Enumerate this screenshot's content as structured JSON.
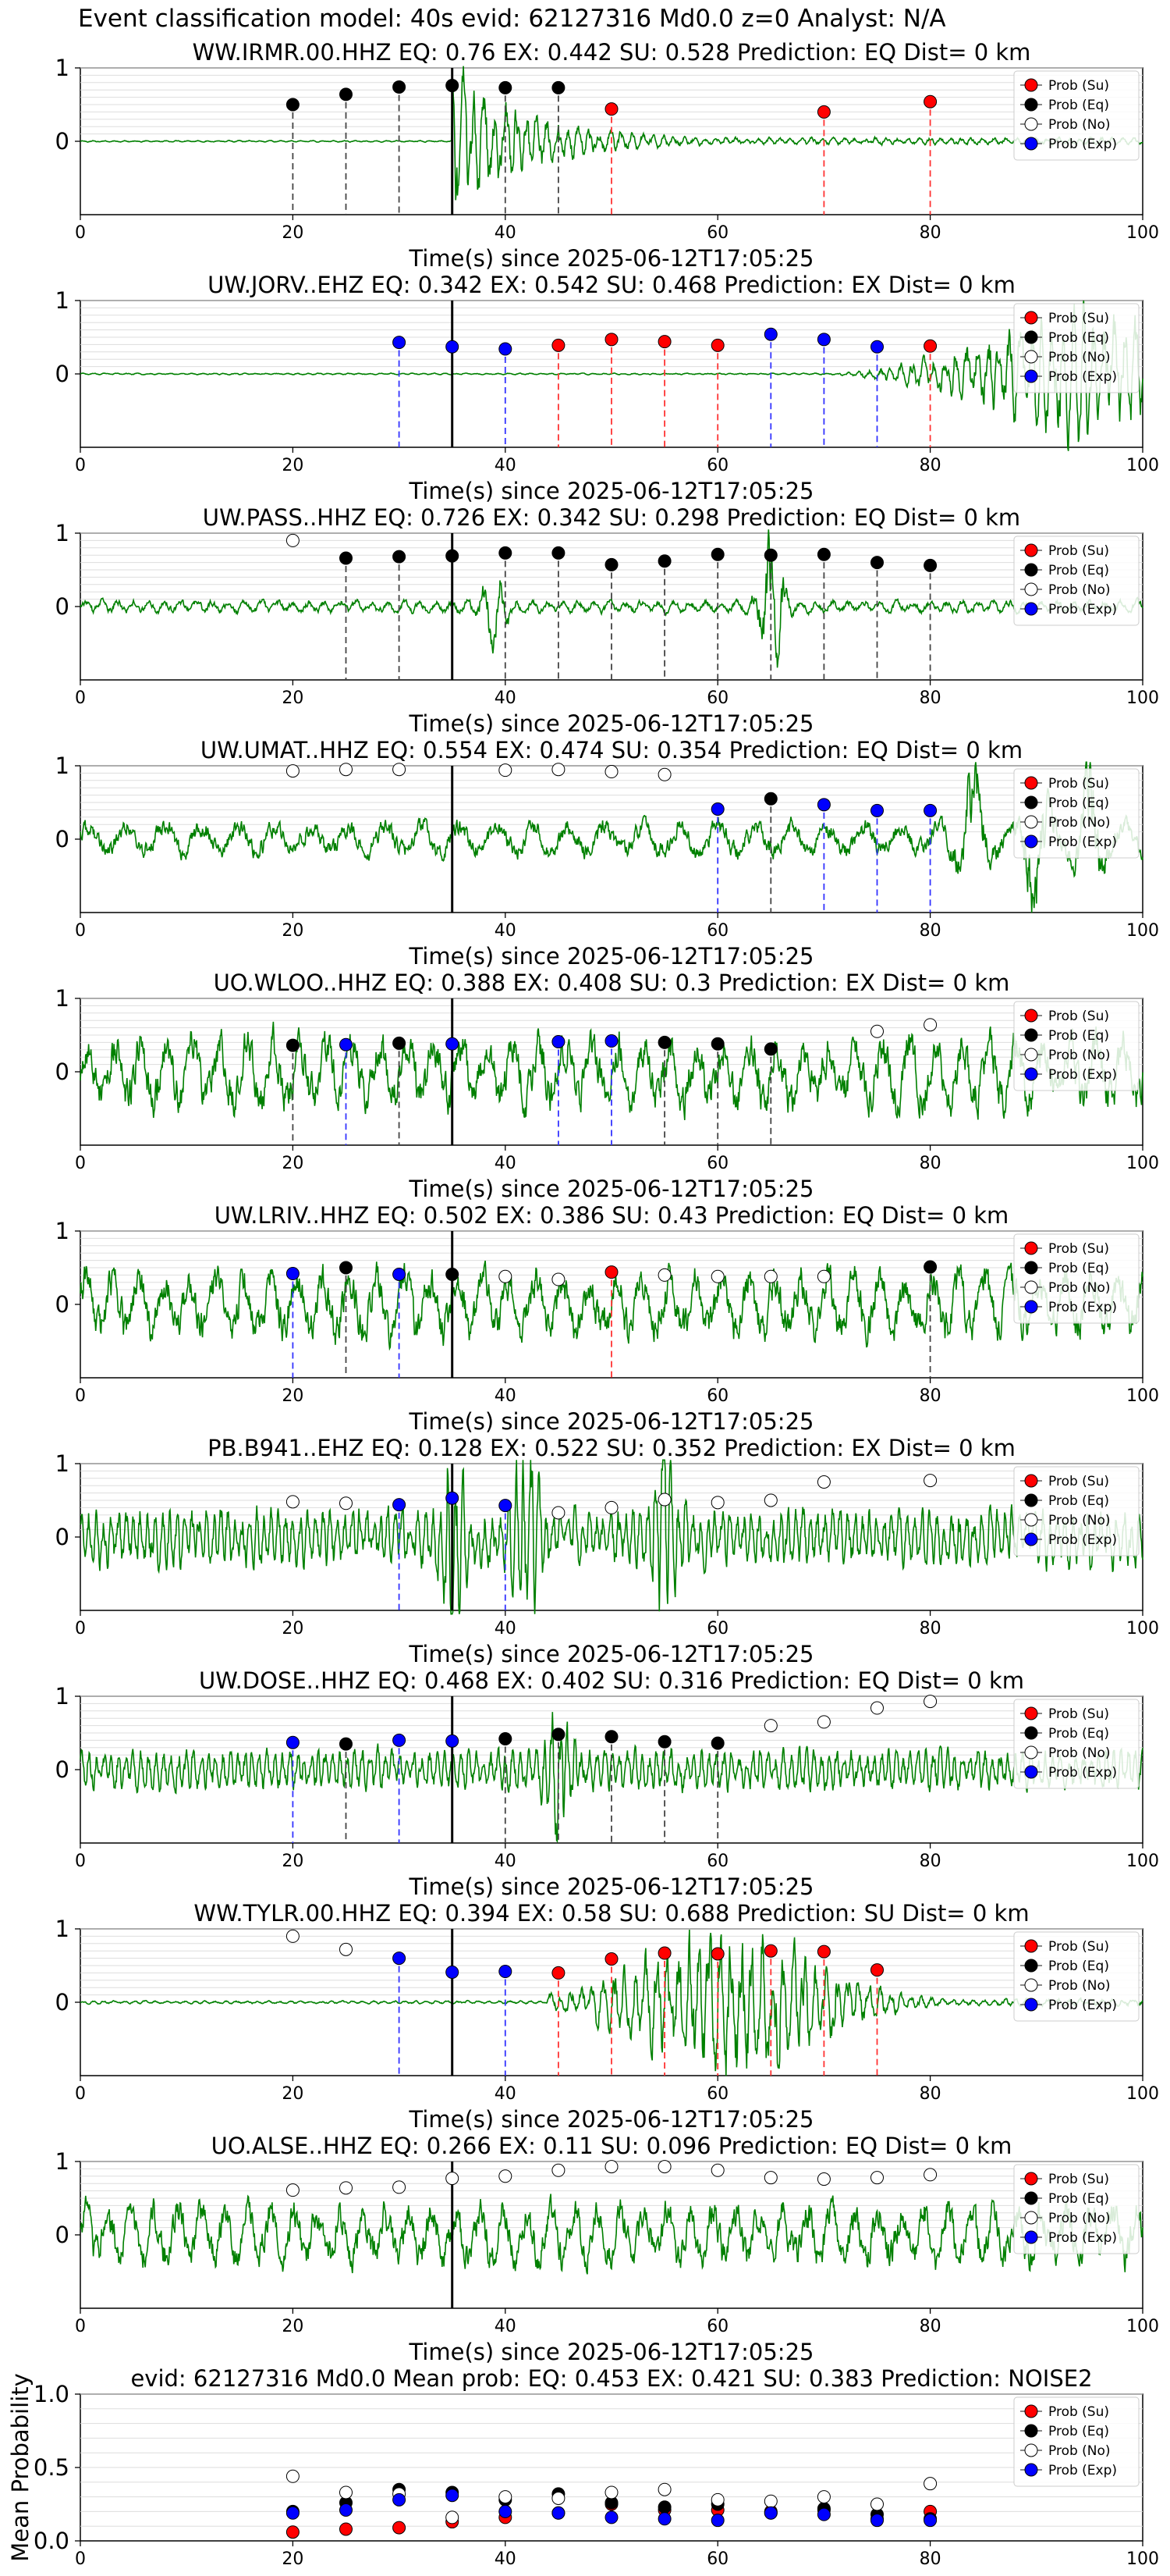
{
  "figure_title": "Event classification model: 40s evid: 62127316 Md0.0 z=0 Analyst: N/A",
  "legend_labels": [
    "Prob (Su)",
    "Prob (Eq)",
    "Prob (No)",
    "Prob (Exp)"
  ],
  "colors": {
    "su": "#ff0000",
    "eq": "#000000",
    "no": "#ffffff",
    "exp": "#0000ff",
    "trace": "#008000",
    "p_line": "#000000"
  },
  "chart_data": [
    {
      "type": "line",
      "title": "WW.IRMR.00.HHZ   EQ: 0.76  EX: 0.442  SU: 0.528   Prediction: EQ    Dist= 0 km",
      "xlabel": "Time(s) since 2025-06-12T17:05:25",
      "ylabel": "",
      "xlim": [
        0,
        100
      ],
      "ylim": [
        -1,
        1
      ],
      "xticks": [
        0,
        20,
        40,
        60,
        80,
        100
      ],
      "yticks": [
        0,
        1
      ],
      "p_arrival": 35,
      "legend": "top-right",
      "waveform": {
        "style": "event",
        "start": 35,
        "peak": 1,
        "decay": 0.13,
        "tail": 0.04,
        "noise": 0.01,
        "period": 1,
        "seed": 11
      },
      "points": [
        {
          "t": 20,
          "cls": "eq",
          "p": 0.5
        },
        {
          "t": 25,
          "cls": "eq",
          "p": 0.64
        },
        {
          "t": 30,
          "cls": "eq",
          "p": 0.74
        },
        {
          "t": 35,
          "cls": "eq",
          "p": 0.76
        },
        {
          "t": 40,
          "cls": "eq",
          "p": 0.73
        },
        {
          "t": 45,
          "cls": "eq",
          "p": 0.73
        },
        {
          "t": 50,
          "cls": "su",
          "p": 0.44
        },
        {
          "t": 70,
          "cls": "su",
          "p": 0.4
        },
        {
          "t": 80,
          "cls": "su",
          "p": 0.54
        }
      ]
    },
    {
      "type": "line",
      "title": "UW.JORV..EHZ   EQ: 0.342  EX: 0.542  SU: 0.468   Prediction: EX    Dist= 0 km",
      "xlabel": "Time(s) since 2025-06-12T17:05:25",
      "ylabel": "",
      "xlim": [
        0,
        100
      ],
      "ylim": [
        -1,
        1
      ],
      "xticks": [
        0,
        20,
        40,
        60,
        80,
        100
      ],
      "yticks": [
        0,
        1
      ],
      "p_arrival": 35,
      "legend": "top-right",
      "waveform": {
        "style": "ramp",
        "start": 70,
        "peak": 1,
        "noise": 0.01,
        "period": 1,
        "seed": 23
      },
      "points": [
        {
          "t": 30,
          "cls": "exp",
          "p": 0.43
        },
        {
          "t": 35,
          "cls": "exp",
          "p": 0.37
        },
        {
          "t": 40,
          "cls": "exp",
          "p": 0.34
        },
        {
          "t": 45,
          "cls": "su",
          "p": 0.39
        },
        {
          "t": 50,
          "cls": "su",
          "p": 0.47
        },
        {
          "t": 55,
          "cls": "su",
          "p": 0.44
        },
        {
          "t": 60,
          "cls": "su",
          "p": 0.39
        },
        {
          "t": 65,
          "cls": "exp",
          "p": 0.54
        },
        {
          "t": 70,
          "cls": "exp",
          "p": 0.47
        },
        {
          "t": 75,
          "cls": "exp",
          "p": 0.37
        },
        {
          "t": 80,
          "cls": "su",
          "p": 0.38
        }
      ]
    },
    {
      "type": "line",
      "title": "UW.PASS..HHZ   EQ: 0.726  EX: 0.342  SU: 0.298   Prediction: EQ    Dist= 0 km",
      "xlabel": "Time(s) since 2025-06-12T17:05:25",
      "ylabel": "",
      "xlim": [
        0,
        100
      ],
      "ylim": [
        -1,
        1
      ],
      "xticks": [
        0,
        20,
        40,
        60,
        80,
        100
      ],
      "yticks": [
        0,
        1
      ],
      "p_arrival": 35,
      "legend": "top-right",
      "waveform": {
        "style": "noise",
        "noise": 0.09,
        "period": 1.5,
        "seed": 37,
        "bursts": [
          [
            39,
            0.5
          ],
          [
            65,
            0.9
          ]
        ]
      },
      "points": [
        {
          "t": 20,
          "cls": "no",
          "p": 0.9
        },
        {
          "t": 25,
          "cls": "eq",
          "p": 0.66
        },
        {
          "t": 30,
          "cls": "eq",
          "p": 0.68
        },
        {
          "t": 35,
          "cls": "eq",
          "p": 0.69
        },
        {
          "t": 40,
          "cls": "eq",
          "p": 0.73
        },
        {
          "t": 45,
          "cls": "eq",
          "p": 0.73
        },
        {
          "t": 50,
          "cls": "eq",
          "p": 0.57
        },
        {
          "t": 55,
          "cls": "eq",
          "p": 0.62
        },
        {
          "t": 60,
          "cls": "eq",
          "p": 0.71
        },
        {
          "t": 65,
          "cls": "eq",
          "p": 0.7
        },
        {
          "t": 70,
          "cls": "eq",
          "p": 0.71
        },
        {
          "t": 75,
          "cls": "eq",
          "p": 0.6
        },
        {
          "t": 80,
          "cls": "eq",
          "p": 0.56
        }
      ]
    },
    {
      "type": "line",
      "title": "UW.UMAT..HHZ   EQ: 0.554  EX: 0.474  SU: 0.354   Prediction: EQ    Dist= 0 km",
      "xlabel": "Time(s) since 2025-06-12T17:05:25",
      "ylabel": "",
      "xlim": [
        0,
        100
      ],
      "ylim": [
        -1,
        1
      ],
      "xticks": [
        0,
        20,
        40,
        60,
        80,
        100
      ],
      "yticks": [
        0,
        1
      ],
      "p_arrival": 35,
      "legend": "top-right",
      "waveform": {
        "style": "noise",
        "noise": 0.25,
        "period": 3.5,
        "seed": 41,
        "bursts": [
          [
            84,
            0.9
          ],
          [
            90,
            0.9
          ],
          [
            95,
            0.8
          ]
        ]
      },
      "points": [
        {
          "t": 20,
          "cls": "no",
          "p": 0.93
        },
        {
          "t": 25,
          "cls": "no",
          "p": 0.95
        },
        {
          "t": 30,
          "cls": "no",
          "p": 0.95
        },
        {
          "t": 40,
          "cls": "no",
          "p": 0.94
        },
        {
          "t": 45,
          "cls": "no",
          "p": 0.95
        },
        {
          "t": 50,
          "cls": "no",
          "p": 0.92
        },
        {
          "t": 55,
          "cls": "no",
          "p": 0.88
        },
        {
          "t": 60,
          "cls": "exp",
          "p": 0.41
        },
        {
          "t": 65,
          "cls": "eq",
          "p": 0.55
        },
        {
          "t": 70,
          "cls": "exp",
          "p": 0.47
        },
        {
          "t": 75,
          "cls": "exp",
          "p": 0.39
        },
        {
          "t": 80,
          "cls": "exp",
          "p": 0.39
        }
      ]
    },
    {
      "type": "line",
      "title": "UO.WLOO..HHZ   EQ: 0.388  EX: 0.408  SU: 0.3   Prediction: EX    Dist= 0 km",
      "xlabel": "Time(s) since 2025-06-12T17:05:25",
      "ylabel": "",
      "xlim": [
        0,
        100
      ],
      "ylim": [
        -1,
        1
      ],
      "xticks": [
        0,
        20,
        40,
        60,
        80,
        100
      ],
      "yticks": [
        0,
        1
      ],
      "p_arrival": 35,
      "legend": "top-right",
      "waveform": {
        "style": "noise",
        "noise": 0.55,
        "period": 2.5,
        "seed": 53
      },
      "points": [
        {
          "t": 20,
          "cls": "eq",
          "p": 0.36
        },
        {
          "t": 25,
          "cls": "exp",
          "p": 0.37
        },
        {
          "t": 30,
          "cls": "eq",
          "p": 0.39
        },
        {
          "t": 35,
          "cls": "exp",
          "p": 0.38
        },
        {
          "t": 45,
          "cls": "exp",
          "p": 0.41
        },
        {
          "t": 50,
          "cls": "exp",
          "p": 0.42
        },
        {
          "t": 55,
          "cls": "eq",
          "p": 0.4
        },
        {
          "t": 60,
          "cls": "eq",
          "p": 0.38
        },
        {
          "t": 65,
          "cls": "eq",
          "p": 0.31
        },
        {
          "t": 75,
          "cls": "no",
          "p": 0.55
        },
        {
          "t": 80,
          "cls": "no",
          "p": 0.64
        }
      ]
    },
    {
      "type": "line",
      "title": "UW.LRIV..HHZ   EQ: 0.502  EX: 0.386  SU: 0.43   Prediction: EQ    Dist= 0 km",
      "xlabel": "Time(s) since 2025-06-12T17:05:25",
      "ylabel": "",
      "xlim": [
        0,
        100
      ],
      "ylim": [
        -1,
        1
      ],
      "xticks": [
        0,
        20,
        40,
        60,
        80,
        100
      ],
      "yticks": [
        0,
        1
      ],
      "p_arrival": 35,
      "legend": "top-right",
      "waveform": {
        "style": "noise",
        "noise": 0.5,
        "period": 2.5,
        "seed": 61
      },
      "points": [
        {
          "t": 20,
          "cls": "exp",
          "p": 0.42
        },
        {
          "t": 25,
          "cls": "eq",
          "p": 0.5
        },
        {
          "t": 30,
          "cls": "exp",
          "p": 0.41
        },
        {
          "t": 35,
          "cls": "eq",
          "p": 0.41
        },
        {
          "t": 40,
          "cls": "no",
          "p": 0.38
        },
        {
          "t": 45,
          "cls": "no",
          "p": 0.34
        },
        {
          "t": 50,
          "cls": "su",
          "p": 0.44
        },
        {
          "t": 55,
          "cls": "no",
          "p": 0.4
        },
        {
          "t": 60,
          "cls": "no",
          "p": 0.38
        },
        {
          "t": 65,
          "cls": "no",
          "p": 0.38
        },
        {
          "t": 70,
          "cls": "no",
          "p": 0.38
        },
        {
          "t": 80,
          "cls": "eq",
          "p": 0.51
        }
      ]
    },
    {
      "type": "line",
      "title": "PB.B941..EHZ   EQ: 0.128  EX: 0.522  SU: 0.352   Prediction: EX    Dist= 0 km",
      "xlabel": "Time(s) since 2025-06-12T17:05:25",
      "ylabel": "",
      "xlim": [
        0,
        100
      ],
      "ylim": [
        -1,
        1
      ],
      "xticks": [
        0,
        20,
        40,
        60,
        80,
        100
      ],
      "yticks": [
        0,
        1
      ],
      "p_arrival": 35,
      "legend": "top-right",
      "waveform": {
        "style": "noise",
        "noise": 0.4,
        "period": 0.7,
        "seed": 71,
        "bursts": [
          [
            35,
            0.9
          ],
          [
            42,
            0.9
          ],
          [
            55,
            0.9
          ]
        ]
      },
      "points": [
        {
          "t": 20,
          "cls": "no",
          "p": 0.48
        },
        {
          "t": 25,
          "cls": "no",
          "p": 0.46
        },
        {
          "t": 30,
          "cls": "exp",
          "p": 0.44
        },
        {
          "t": 35,
          "cls": "exp",
          "p": 0.53
        },
        {
          "t": 40,
          "cls": "exp",
          "p": 0.43
        },
        {
          "t": 45,
          "cls": "no",
          "p": 0.33
        },
        {
          "t": 50,
          "cls": "no",
          "p": 0.4
        },
        {
          "t": 55,
          "cls": "no",
          "p": 0.51
        },
        {
          "t": 60,
          "cls": "no",
          "p": 0.47
        },
        {
          "t": 65,
          "cls": "no",
          "p": 0.5
        },
        {
          "t": 70,
          "cls": "no",
          "p": 0.75
        },
        {
          "t": 80,
          "cls": "no",
          "p": 0.77
        }
      ]
    },
    {
      "type": "line",
      "title": "UW.DOSE..HHZ   EQ: 0.468  EX: 0.402  SU: 0.316   Prediction: EQ    Dist= 0 km",
      "xlabel": "Time(s) since 2025-06-12T17:05:25",
      "ylabel": "",
      "xlim": [
        0,
        100
      ],
      "ylim": [
        -1,
        1
      ],
      "xticks": [
        0,
        20,
        40,
        60,
        80,
        100
      ],
      "yticks": [
        0,
        1
      ],
      "p_arrival": 35,
      "legend": "top-right",
      "waveform": {
        "style": "noise",
        "noise": 0.28,
        "period": 0.7,
        "seed": 83,
        "bursts": [
          [
            45,
            0.9
          ]
        ]
      },
      "points": [
        {
          "t": 20,
          "cls": "exp",
          "p": 0.37
        },
        {
          "t": 25,
          "cls": "eq",
          "p": 0.35
        },
        {
          "t": 30,
          "cls": "exp",
          "p": 0.4
        },
        {
          "t": 35,
          "cls": "exp",
          "p": 0.39
        },
        {
          "t": 40,
          "cls": "eq",
          "p": 0.42
        },
        {
          "t": 45,
          "cls": "eq",
          "p": 0.48
        },
        {
          "t": 50,
          "cls": "eq",
          "p": 0.45
        },
        {
          "t": 55,
          "cls": "eq",
          "p": 0.38
        },
        {
          "t": 60,
          "cls": "eq",
          "p": 0.36
        },
        {
          "t": 65,
          "cls": "no",
          "p": 0.6
        },
        {
          "t": 70,
          "cls": "no",
          "p": 0.65
        },
        {
          "t": 75,
          "cls": "no",
          "p": 0.84
        },
        {
          "t": 80,
          "cls": "no",
          "p": 0.93
        }
      ]
    },
    {
      "type": "line",
      "title": "WW.TYLR.00.HHZ   EQ: 0.394  EX: 0.58  SU: 0.688   Prediction: SU    Dist= 0 km",
      "xlabel": "Time(s) since 2025-06-12T17:05:25",
      "ylabel": "",
      "xlim": [
        0,
        100
      ],
      "ylim": [
        -1,
        1
      ],
      "xticks": [
        0,
        20,
        40,
        60,
        80,
        100
      ],
      "yticks": [
        0,
        1
      ],
      "p_arrival": 35,
      "legend": "top-right",
      "waveform": {
        "style": "spindle",
        "start": 44,
        "center": 61,
        "width": 11,
        "peak": 1,
        "noise": 0.02,
        "period": 1,
        "seed": 97
      },
      "points": [
        {
          "t": 20,
          "cls": "no",
          "p": 0.9
        },
        {
          "t": 25,
          "cls": "no",
          "p": 0.72
        },
        {
          "t": 30,
          "cls": "exp",
          "p": 0.6
        },
        {
          "t": 35,
          "cls": "exp",
          "p": 0.41
        },
        {
          "t": 40,
          "cls": "exp",
          "p": 0.42
        },
        {
          "t": 45,
          "cls": "su",
          "p": 0.4
        },
        {
          "t": 50,
          "cls": "su",
          "p": 0.59
        },
        {
          "t": 55,
          "cls": "su",
          "p": 0.67
        },
        {
          "t": 60,
          "cls": "su",
          "p": 0.66
        },
        {
          "t": 65,
          "cls": "su",
          "p": 0.7
        },
        {
          "t": 70,
          "cls": "su",
          "p": 0.69
        },
        {
          "t": 75,
          "cls": "su",
          "p": 0.44
        }
      ]
    },
    {
      "type": "line",
      "title": "UO.ALSE..HHZ   EQ: 0.266  EX: 0.11  SU: 0.096   Prediction: EQ    Dist= 0 km",
      "xlabel": "Time(s) since 2025-06-12T17:05:25",
      "ylabel": "",
      "xlim": [
        0,
        100
      ],
      "ylim": [
        -1,
        1
      ],
      "xticks": [
        0,
        20,
        40,
        60,
        80,
        100
      ],
      "yticks": [
        0,
        1
      ],
      "p_arrival": 35,
      "legend": "top-right",
      "waveform": {
        "style": "noise",
        "noise": 0.45,
        "period": 2.2,
        "seed": 103
      },
      "points": [
        {
          "t": 20,
          "cls": "no",
          "p": 0.61
        },
        {
          "t": 25,
          "cls": "no",
          "p": 0.64
        },
        {
          "t": 30,
          "cls": "no",
          "p": 0.65
        },
        {
          "t": 35,
          "cls": "no",
          "p": 0.77
        },
        {
          "t": 40,
          "cls": "no",
          "p": 0.8
        },
        {
          "t": 45,
          "cls": "no",
          "p": 0.88
        },
        {
          "t": 50,
          "cls": "no",
          "p": 0.93
        },
        {
          "t": 55,
          "cls": "no",
          "p": 0.93
        },
        {
          "t": 60,
          "cls": "no",
          "p": 0.88
        },
        {
          "t": 65,
          "cls": "no",
          "p": 0.78
        },
        {
          "t": 70,
          "cls": "no",
          "p": 0.76
        },
        {
          "t": 75,
          "cls": "no",
          "p": 0.78
        },
        {
          "t": 80,
          "cls": "no",
          "p": 0.82
        }
      ]
    },
    {
      "type": "scatter",
      "title": "evid: 62127316  Md0.0   Mean prob:   EQ: 0.453  EX: 0.421  SU: 0.383   Prediction: NOISE2",
      "xlabel": "",
      "ylabel": "Mean Probability",
      "xlim": [
        0,
        100
      ],
      "ylim": [
        0,
        1
      ],
      "xticks": [
        0,
        20,
        40,
        60,
        80,
        100
      ],
      "yticks": [
        0,
        0.5,
        1
      ],
      "ytick_labels": [
        "0.0",
        "0.5",
        "1.0"
      ],
      "legend": "top-right",
      "x": [
        20,
        25,
        30,
        35,
        40,
        45,
        50,
        55,
        60,
        65,
        70,
        75,
        80
      ],
      "series": [
        {
          "name": "Prob (Su)",
          "cls": "su",
          "values": [
            0.06,
            0.08,
            0.09,
            0.13,
            0.16,
            0.19,
            0.25,
            0.21,
            0.21,
            0.2,
            0.21,
            0.15,
            0.2
          ]
        },
        {
          "name": "Prob (Eq)",
          "cls": "eq",
          "values": [
            0.2,
            0.26,
            0.35,
            0.33,
            0.28,
            0.32,
            0.26,
            0.23,
            0.25,
            0.19,
            0.22,
            0.18,
            0.15
          ]
        },
        {
          "name": "Prob (No)",
          "cls": "no",
          "values": [
            0.44,
            0.33,
            0.32,
            0.16,
            0.3,
            0.29,
            0.33,
            0.35,
            0.28,
            0.27,
            0.3,
            0.25,
            0.39
          ]
        },
        {
          "name": "Prob (Exp)",
          "cls": "exp",
          "values": [
            0.19,
            0.21,
            0.28,
            0.31,
            0.2,
            0.19,
            0.16,
            0.15,
            0.14,
            0.19,
            0.18,
            0.14,
            0.14
          ]
        }
      ]
    }
  ]
}
